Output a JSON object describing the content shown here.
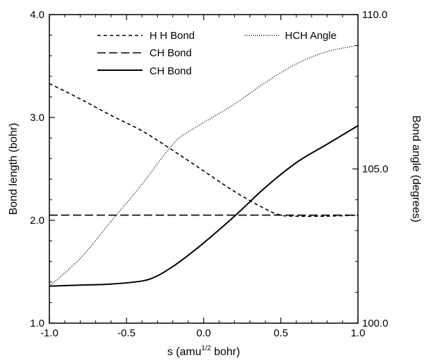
{
  "chart_data": {
    "type": "line",
    "xlabel": "s (amu",
    "xlabel_sup": "1/2",
    "xlabel_tail": " bohr)",
    "ylabel_left": "Bond length (bohr)",
    "ylabel_right": "Bond angle (degrees)",
    "xlim": [
      -1.0,
      1.0
    ],
    "ylim_left": [
      1.0,
      4.0
    ],
    "ylim_right": [
      100.0,
      110.0
    ],
    "x_ticks": [
      "-1.0",
      "-0.5",
      "0.0",
      "0.5",
      "1.0"
    ],
    "x_tick_values": [
      -1.0,
      -0.5,
      0.0,
      0.5,
      1.0
    ],
    "y_left_ticks": [
      "1.0",
      "2.0",
      "3.0",
      "4.0"
    ],
    "y_left_tick_values": [
      1.0,
      2.0,
      3.0,
      4.0
    ],
    "y_right_ticks": [
      "100.0",
      "105.0",
      "110.0"
    ],
    "y_right_tick_values": [
      100.0,
      105.0,
      110.0
    ],
    "grid": false,
    "legend_position": "top",
    "series": [
      {
        "name": "H H Bond",
        "axis": "left",
        "style": "dashed",
        "x": [
          -1.0,
          -0.8,
          -0.6,
          -0.4,
          -0.2,
          0.0,
          0.2,
          0.4,
          0.5,
          0.6,
          0.8,
          1.0
        ],
        "y": [
          3.33,
          3.18,
          3.02,
          2.87,
          2.68,
          2.48,
          2.28,
          2.11,
          2.05,
          2.04,
          2.04,
          2.05
        ]
      },
      {
        "name": "CH Bond",
        "axis": "left",
        "style": "long-dashed",
        "x": [
          -1.0,
          -0.5,
          0.0,
          0.5,
          1.0
        ],
        "y": [
          2.05,
          2.05,
          2.05,
          2.05,
          2.05
        ]
      },
      {
        "name": "CH Bond",
        "axis": "left",
        "style": "solid",
        "x": [
          -1.0,
          -0.8,
          -0.6,
          -0.4,
          -0.3,
          -0.2,
          -0.1,
          0.0,
          0.2,
          0.4,
          0.6,
          0.8,
          1.0
        ],
        "y": [
          1.36,
          1.37,
          1.38,
          1.41,
          1.46,
          1.55,
          1.66,
          1.78,
          2.04,
          2.32,
          2.56,
          2.74,
          2.92
        ]
      },
      {
        "name": "HCH Angle",
        "axis": "right",
        "style": "dotted",
        "x": [
          -1.0,
          -0.8,
          -0.6,
          -0.4,
          -0.2,
          -0.1,
          0.0,
          0.2,
          0.4,
          0.6,
          0.8,
          1.0
        ],
        "y": [
          101.2,
          102.1,
          103.3,
          104.5,
          105.8,
          106.2,
          106.5,
          107.1,
          107.8,
          108.4,
          108.8,
          109.0
        ]
      }
    ]
  }
}
